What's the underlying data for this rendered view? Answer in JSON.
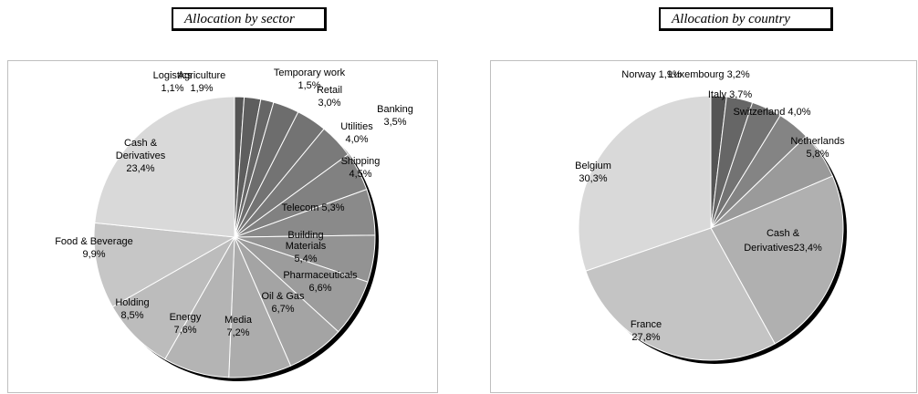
{
  "chart_data": [
    {
      "type": "pie",
      "title": "Allocation by sector",
      "slices": [
        {
          "label": "Logistics",
          "value": "1,1%",
          "pct": 1.1,
          "color": "#555555"
        },
        {
          "label": "Agriculture",
          "value": "1,9%",
          "pct": 1.9,
          "color": "#5e5e5e"
        },
        {
          "label": "Temporary work",
          "value": "1,5%",
          "pct": 1.5,
          "color": "#666666"
        },
        {
          "label": "Retail",
          "value": "3,0%",
          "pct": 3.0,
          "color": "#6d6d6d"
        },
        {
          "label": "Banking",
          "value": "3,5%",
          "pct": 3.5,
          "color": "#737373"
        },
        {
          "label": "Utilities",
          "value": "4,0%",
          "pct": 4.0,
          "color": "#7a7a7a"
        },
        {
          "label": "Shipping",
          "value": "4,5%",
          "pct": 4.5,
          "color": "#818181"
        },
        {
          "label": "Telecom",
          "value": "5,3%",
          "pct": 5.3,
          "color": "#8a8a8a"
        },
        {
          "label": "Building Materials",
          "value": "5,4%",
          "pct": 5.4,
          "color": "#939393"
        },
        {
          "label": "Pharmaceuticals",
          "value": "6,6%",
          "pct": 6.6,
          "color": "#9c9c9c"
        },
        {
          "label": "Oil & Gas",
          "value": "6,7%",
          "pct": 6.7,
          "color": "#a4a4a4"
        },
        {
          "label": "Media",
          "value": "7,2%",
          "pct": 7.2,
          "color": "#acacac"
        },
        {
          "label": "Energy",
          "value": "7,6%",
          "pct": 7.6,
          "color": "#b4b4b4"
        },
        {
          "label": "Holding",
          "value": "8,5%",
          "pct": 8.5,
          "color": "#bcbcbc"
        },
        {
          "label": "Food & Beverage",
          "value": "9,9%",
          "pct": 9.9,
          "color": "#c6c6c6"
        },
        {
          "label": "Cash & Derivatives",
          "value": "23,4%",
          "pct": 23.4,
          "color": "#d9d9d9"
        }
      ]
    },
    {
      "type": "pie",
      "title": "Allocation by country",
      "slices": [
        {
          "label": "Norway",
          "value": "1,9%",
          "pct": 1.9,
          "color": "#555555"
        },
        {
          "label": "Luxembourg",
          "value": "3,2%",
          "pct": 3.2,
          "color": "#666666"
        },
        {
          "label": "Italy",
          "value": "3,7%",
          "pct": 3.7,
          "color": "#737373"
        },
        {
          "label": "Switzerland",
          "value": "4,0%",
          "pct": 4.0,
          "color": "#848484"
        },
        {
          "label": "Netherlands",
          "value": "5,8%",
          "pct": 5.8,
          "color": "#9a9a9a"
        },
        {
          "label": "Cash & Derivatives",
          "value": "23,4%",
          "pct": 23.4,
          "color": "#b0b0b0"
        },
        {
          "label": "France",
          "value": "27,8%",
          "pct": 27.8,
          "color": "#c4c4c4"
        },
        {
          "label": "Belgium",
          "value": "30,3%",
          "pct": 30.3,
          "color": "#d9d9d9"
        }
      ]
    }
  ]
}
